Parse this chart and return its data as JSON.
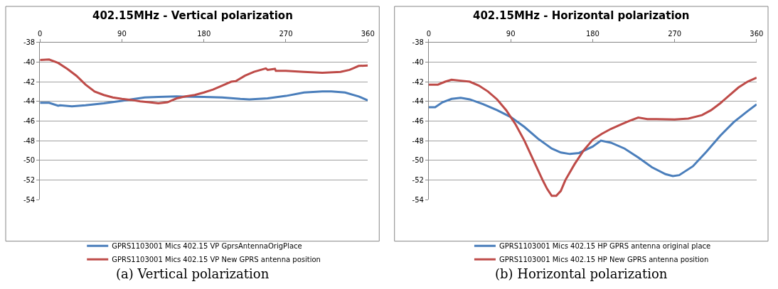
{
  "chart_data": [
    {
      "type": "line",
      "title": "402.15MHz - Vertical polarization",
      "annotations": [
        "(a) Vertical polarization"
      ],
      "xlim": [
        0,
        360
      ],
      "xticks": [
        0,
        90,
        180,
        270,
        360
      ],
      "ylim": [
        -54,
        -38
      ],
      "yticks": [
        -54,
        -52,
        -50,
        -48,
        -46,
        -44,
        -42,
        -40,
        -38
      ],
      "grid": "y",
      "legend": "bottom",
      "marker": "none",
      "line_style": "solid",
      "series": [
        {
          "name": "GPRS1103001 Mics 402.15 VP GprsAntennaOrigPlace",
          "color": "#4a7ebb",
          "x": [
            0,
            10,
            20,
            22,
            35,
            50,
            70,
            90,
            100,
            115,
            130,
            150,
            180,
            200,
            220,
            230,
            250,
            270,
            290,
            310,
            320,
            335,
            350,
            360
          ],
          "values": [
            -44.15,
            -44.15,
            -44.45,
            -44.4,
            -44.5,
            -44.4,
            -44.2,
            -43.95,
            -43.8,
            -43.6,
            -43.55,
            -43.5,
            -43.55,
            -43.6,
            -43.75,
            -43.8,
            -43.7,
            -43.45,
            -43.1,
            -43.0,
            -43.0,
            -43.1,
            -43.5,
            -43.9
          ]
        },
        {
          "name": "GPRS1103001 Mics 402.15 VP New GPRS antenna position",
          "color": "#be4b48",
          "x": [
            0,
            10,
            20,
            30,
            40,
            50,
            60,
            70,
            80,
            90,
            100,
            110,
            120,
            130,
            140,
            150,
            160,
            170,
            180,
            190,
            200,
            210,
            215,
            225,
            235,
            248,
            250,
            258,
            259,
            270,
            290,
            310,
            330,
            340,
            345,
            350,
            360
          ],
          "values": [
            -39.8,
            -39.75,
            -40.1,
            -40.7,
            -41.4,
            -42.3,
            -43.0,
            -43.35,
            -43.6,
            -43.75,
            -43.85,
            -44.0,
            -44.1,
            -44.2,
            -44.1,
            -43.7,
            -43.5,
            -43.35,
            -43.1,
            -42.8,
            -42.4,
            -42.0,
            -41.95,
            -41.4,
            -41.0,
            -40.65,
            -40.8,
            -40.7,
            -40.9,
            -40.9,
            -41.0,
            -41.1,
            -41.0,
            -40.8,
            -40.6,
            -40.4,
            -40.35
          ]
        }
      ]
    },
    {
      "type": "line",
      "title": "402.15MHz - Horizontal polarization",
      "annotations": [
        "(b) Horizontal polarization"
      ],
      "xlim": [
        0,
        360
      ],
      "xticks": [
        0,
        90,
        180,
        270,
        360
      ],
      "ylim": [
        -54,
        -38
      ],
      "yticks": [
        -54,
        -52,
        -50,
        -48,
        -46,
        -44,
        -42,
        -40,
        -38
      ],
      "grid": "y",
      "legend": "bottom",
      "marker": "none",
      "line_style": "solid",
      "series": [
        {
          "name": "GPRS1103001 Mics 402.15 HP GPRS antenna original place",
          "color": "#4a7ebb",
          "x": [
            0,
            7,
            15,
            25,
            35,
            45,
            60,
            75,
            90,
            105,
            120,
            135,
            145,
            155,
            165,
            180,
            189,
            200,
            215,
            230,
            245,
            260,
            268,
            275,
            290,
            305,
            320,
            335,
            350,
            360
          ],
          "values": [
            -44.6,
            -44.6,
            -44.1,
            -43.75,
            -43.65,
            -43.8,
            -44.3,
            -44.9,
            -45.6,
            -46.6,
            -47.8,
            -48.8,
            -49.2,
            -49.35,
            -49.25,
            -48.6,
            -48.0,
            -48.2,
            -48.8,
            -49.7,
            -50.7,
            -51.4,
            -51.6,
            -51.5,
            -50.6,
            -49.1,
            -47.5,
            -46.1,
            -45.0,
            -44.3
          ]
        },
        {
          "name": "GPRS1103001 Mics 402.15 HP New GPRS antenna position",
          "color": "#be4b48",
          "x": [
            0,
            10,
            18,
            25,
            35,
            45,
            55,
            65,
            75,
            85,
            95,
            105,
            115,
            125,
            130,
            135,
            140,
            145,
            150,
            160,
            170,
            180,
            190,
            200,
            210,
            220,
            230,
            240,
            250,
            270,
            285,
            300,
            310,
            320,
            330,
            340,
            350,
            360
          ],
          "values": [
            -42.3,
            -42.3,
            -42.0,
            -41.8,
            -41.9,
            -42.0,
            -42.4,
            -43.0,
            -43.8,
            -44.9,
            -46.3,
            -48.0,
            -50.0,
            -52.0,
            -52.9,
            -53.6,
            -53.6,
            -53.1,
            -52.0,
            -50.4,
            -49.0,
            -47.9,
            -47.3,
            -46.8,
            -46.4,
            -46.0,
            -45.65,
            -45.8,
            -45.8,
            -45.85,
            -45.75,
            -45.4,
            -44.9,
            -44.2,
            -43.4,
            -42.6,
            -42.0,
            -41.6
          ]
        }
      ]
    }
  ]
}
